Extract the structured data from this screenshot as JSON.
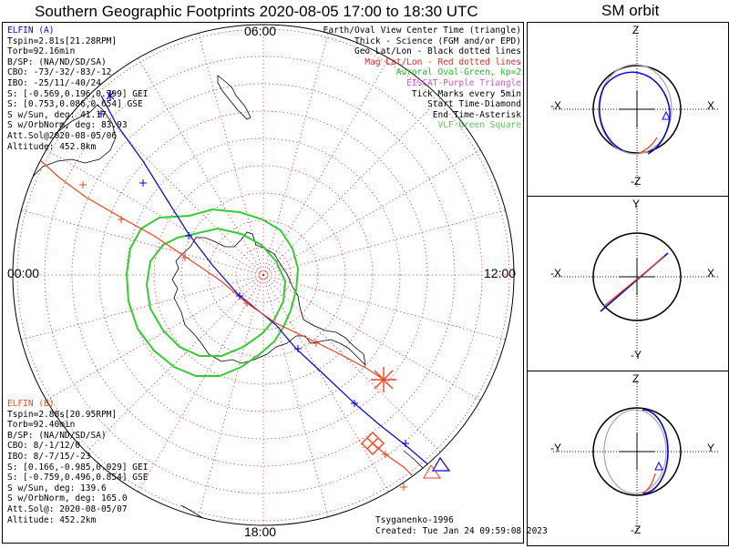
{
  "title": "Southern Geographic Footprints 2020-08-05 17:00 to 18:30 UTC",
  "sm_title": "SM orbit",
  "colors": {
    "elfin_a": "#0000dd",
    "elfin_b": "#ee4422",
    "aurora": "#33cc33",
    "eiscat": "#cc55cc",
    "grid": "#dd2222"
  },
  "hour_labels": {
    "top": "06:00",
    "left": "00:00",
    "right": "12:00",
    "bottom": "18:00"
  },
  "elfin_a": {
    "name": "ELFIN (A)",
    "lines": [
      "Tspin=2.81s[21.28RPM]",
      "Torb=92.16min",
      "B/SP: (NA/ND/SD/SA)",
      "CBO: -73/-32/-83/-12",
      "IBO: -25/11/-40/24",
      "S: [-0.569,0.196,0.799] GEI",
      "S: [0.753,0.086,0.654] GSE",
      "S w/Sun, deg: 41.17",
      "S w/OrbNorm, deg: 83.93",
      "Att.Sol@2020-08-05/06",
      "Altitude: 452.8km"
    ]
  },
  "elfin_b": {
    "name": "ELFIN (B)",
    "lines": [
      "Tspin=2.88s[20.95RPM]",
      "Torb=92.40min",
      "B/SP: (NA/ND/SD/SA)",
      "CBO: 8/-1/12/0",
      "IBO: 8/-7/15/-23",
      "S: [0.166,-0.985,0.029] GEI",
      "S: [-0.759,0.496,0.854] GSE",
      "S w/Sun, deg: 139.6",
      "S w/OrbNorm, deg: 165.0",
      "Att.Sol@: 2020-08-05/07",
      "Altitude: 452.2km"
    ]
  },
  "legend": [
    {
      "text": "Earth/Oval View Center Time (triangle)",
      "color": "#000000"
    },
    {
      "text": "Thick - Science (FGM and/or EPD)",
      "color": "#000000"
    },
    {
      "text": "Geo Lat/Lon - Black dotted lines",
      "color": "#000000"
    },
    {
      "text": "Mag Lat/Lon - Red dotted lines",
      "color": "#ee2222"
    },
    {
      "text": "Auroral Oval-Green, kp=2",
      "color": "#22bb22"
    },
    {
      "text": "EISCAT-Purple Triangle",
      "color": "#cc55cc"
    },
    {
      "text": "Tick Marks every 5min",
      "color": "#000000"
    },
    {
      "text": "Start Time-Diamond",
      "color": "#000000"
    },
    {
      "text": "End Time-Asterisk",
      "color": "#000000"
    },
    {
      "text": "VLF-Green Square",
      "color": "#55cc55"
    }
  ],
  "credit": "Tsyganenko-1996",
  "created": "Created: Tue Jan 24 09:59:08 2023",
  "sm_panels": [
    {
      "top": "Z",
      "bottom": "-Z",
      "left": "-X",
      "right": "X"
    },
    {
      "top": "Y",
      "bottom": "-Y",
      "left": "-X",
      "right": "X"
    },
    {
      "top": "Z",
      "bottom": "-Z",
      "left": "-Y",
      "right": "Y"
    }
  ],
  "chart_data": {
    "type": "scatter",
    "title": "Southern Geographic Footprints 2020-08-05 17:00 to 18:30 UTC",
    "projection": "south polar stereographic, MLT around edge",
    "grid": true,
    "time_range_utc": [
      "2020-08-05 17:00",
      "2020-08-05 18:30"
    ],
    "tick_interval_min": 5,
    "series": [
      {
        "name": "ELFIN (A)",
        "color": "#0000dd"
      },
      {
        "name": "ELFIN (B)",
        "color": "#ee4422"
      }
    ]
  }
}
